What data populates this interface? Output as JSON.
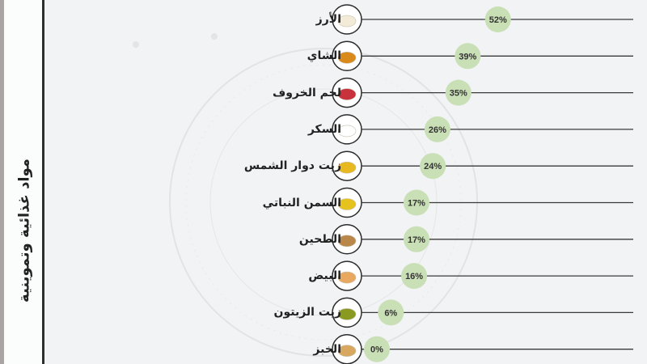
{
  "chart_data": {
    "type": "bar",
    "title": "مواد غذائية وتموينية",
    "categories": [
      "الأرز",
      "الشاي",
      "لحم الخروف",
      "السكر",
      "زيت دوار الشمس",
      "السمن النباتي",
      "الطحين",
      "البيض",
      "زيت الزيتون",
      "الخبز"
    ],
    "values": [
      52,
      39,
      35,
      26,
      24,
      17,
      17,
      16,
      6,
      0
    ],
    "value_labels": [
      "52%",
      "39%",
      "35%",
      "26%",
      "24%",
      "17%",
      "17%",
      "16%",
      "6%",
      "0%"
    ],
    "icons": [
      "rice-icon",
      "tea-icon",
      "lamb-meat-icon",
      "sugar-icon",
      "sunflower-oil-icon",
      "vegetable-ghee-icon",
      "flour-icon",
      "eggs-icon",
      "olive-oil-icon",
      "bread-icon"
    ],
    "xlim": [
      0,
      100
    ],
    "unit": "%",
    "colors": {
      "bubble": "#c9dfb5",
      "line": "#3a3a3a",
      "circle": "#2b2b2b"
    }
  }
}
